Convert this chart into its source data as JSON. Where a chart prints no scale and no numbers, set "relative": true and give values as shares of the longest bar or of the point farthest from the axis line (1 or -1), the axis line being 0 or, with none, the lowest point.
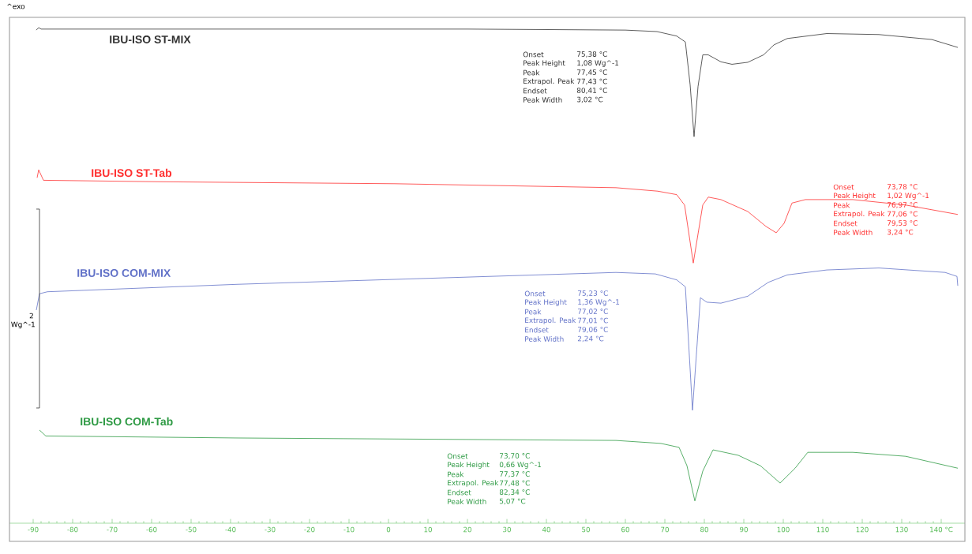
{
  "chart_data": {
    "type": "line",
    "relative": true,
    "xlim": [
      -96,
      146
    ],
    "xticks": [
      -90,
      -80,
      -70,
      -60,
      -50,
      -40,
      -30,
      -20,
      -10,
      0,
      10,
      20,
      30,
      40,
      50,
      60,
      70,
      80,
      90,
      100,
      110,
      120,
      130,
      {
        "value": 140,
        "label": "140 °C"
      }
    ],
    "series": [
      {
        "name": "IBU-ISO ST-MIX",
        "color": "#333333",
        "x": [
          -89.2,
          -88.6,
          -88,
          -40,
          20,
          60,
          68,
          73,
          75.2,
          76.4,
          77.4,
          78.4,
          79.6,
          81,
          84.2,
          87,
          91,
          95,
          97.6,
          101,
          111,
          124.2,
          137.6,
          144.2
        ],
        "values": [
          0.995,
          1,
          0.997,
          0.997,
          0.997,
          0.995,
          0.992,
          0.983,
          0.971,
          0.885,
          0.78,
          0.881,
          0.945,
          0.945,
          0.931,
          0.926,
          0.93,
          0.945,
          0.965,
          0.978,
          0.988,
          0.986,
          0.976,
          0.96
        ]
      },
      {
        "name": "IBU-ISO ST-Tab",
        "color": "#ff3030",
        "x": [
          -89,
          -88.6,
          -87.4,
          -58.4,
          1.6,
          57.6,
          68.2,
          73,
          75,
          77.2,
          79.6,
          81,
          84.2,
          91,
          95.6,
          98.2,
          100.2,
          102.2,
          105.6,
          117.6,
          131,
          144.2
        ],
        "values": [
          0.697,
          0.713,
          0.692,
          0.689,
          0.685,
          0.677,
          0.67,
          0.663,
          0.642,
          0.525,
          0.642,
          0.658,
          0.653,
          0.629,
          0.599,
          0.586,
          0.605,
          0.646,
          0.653,
          0.653,
          0.642,
          0.623
        ]
      },
      {
        "name": "IBU-ISO COM-MIX",
        "color": "#6272c8",
        "x": [
          -89.2,
          -88.4,
          -86.4,
          -38.4,
          57.6,
          67.6,
          73,
          75.2,
          77,
          79,
          80.6,
          84.2,
          91,
          96.2,
          101,
          111,
          124.2,
          141,
          144,
          144.2
        ],
        "values": [
          0.43,
          0.463,
          0.467,
          0.482,
          0.506,
          0.503,
          0.491,
          0.477,
          0.228,
          0.455,
          0.446,
          0.444,
          0.458,
          0.486,
          0.501,
          0.511,
          0.515,
          0.506,
          0.498,
          0.479
        ]
      },
      {
        "name": "IBU-ISO COM-Tab",
        "color": "#2e9a44",
        "x": [
          -88.4,
          -86.8,
          -38.4,
          57.6,
          69,
          73.6,
          75.6,
          77.6,
          79.6,
          82.2,
          88.6,
          94.2,
          99.2,
          103,
          106.2,
          117.6,
          131,
          144.2
        ],
        "values": [
          0.188,
          0.176,
          0.172,
          0.167,
          0.161,
          0.153,
          0.116,
          0.045,
          0.105,
          0.148,
          0.137,
          0.116,
          0.081,
          0.111,
          0.143,
          0.143,
          0.135,
          0.111
        ]
      }
    ],
    "annotations": [
      "^exo",
      "2",
      "Wg^-1",
      "Onset",
      "75,38 °C",
      "Peak Height",
      "1,08 Wg^-1",
      "Peak",
      "77,45 °C",
      "Extrapol. Peak",
      "77,43 °C",
      "Endset",
      "80,41 °C",
      "Peak Width",
      "3,02 °C",
      "Onset",
      "73,78 °C",
      "Peak Height",
      "1,02 Wg^-1",
      "Peak",
      "76,97 °C",
      "Extrapol. Peak",
      "77,06 °C",
      "Endset",
      "79,53 °C",
      "Peak Width",
      "3,24 °C",
      "Onset",
      "75,23 °C",
      "Peak Height",
      "1,36 Wg^-1",
      "Peak",
      "77,02 °C",
      "Extrapol. Peak",
      "77,01 °C",
      "Endset",
      "79,06 °C",
      "Peak Width",
      "2,24 °C",
      "Onset",
      "73,70 °C",
      "Peak Height",
      "0,66 Wg^-1",
      "Peak",
      "77,37 °C",
      "Extrapol. Peak",
      "77,48 °C",
      "Endset",
      "82,34 °C",
      "Peak Width",
      "5,07 °C"
    ]
  }
}
